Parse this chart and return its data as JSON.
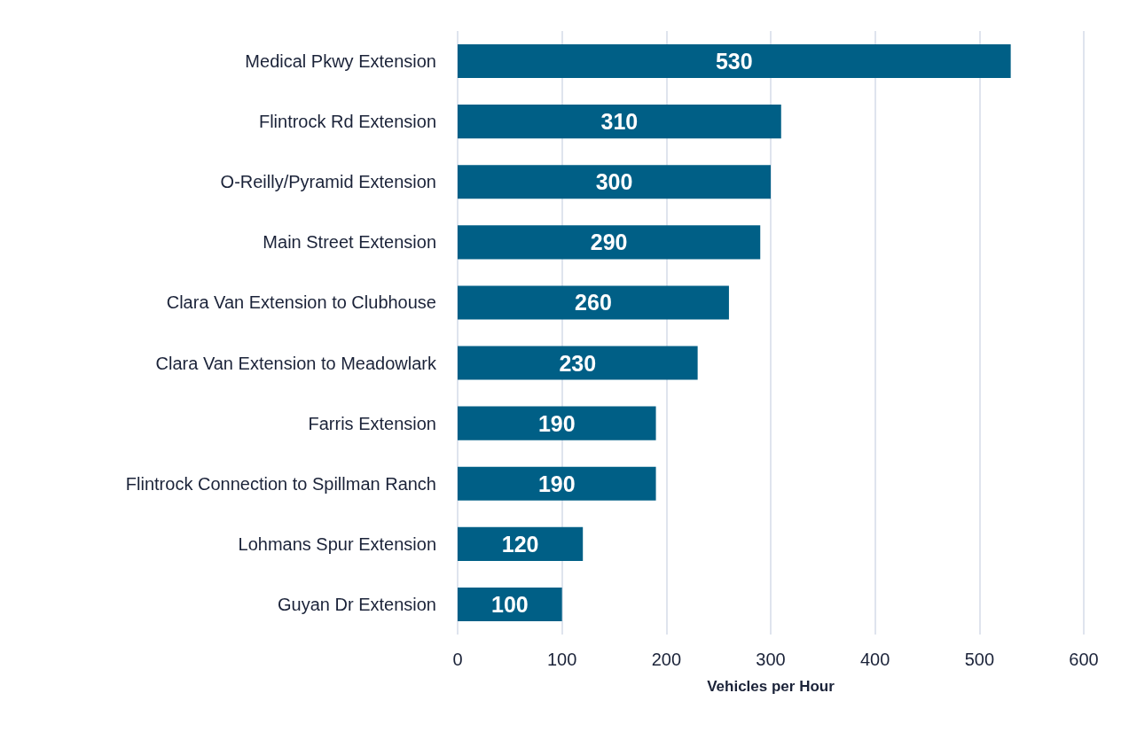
{
  "chart_data": {
    "type": "bar",
    "orientation": "horizontal",
    "xlabel": "Vehicles per Hour",
    "categories": [
      "Medical Pkwy Extension",
      "Flintrock Rd Extension",
      "O-Reilly/Pyramid Extension",
      "Main Street Extension",
      "Clara Van Extension to Clubhouse",
      "Clara Van Extension to Meadowlark",
      "Farris Extension",
      "Flintrock Connection to Spillman Ranch",
      "Lohmans Spur Extension",
      "Guyan Dr Extension"
    ],
    "values": [
      530,
      310,
      300,
      290,
      260,
      230,
      190,
      190,
      120,
      100
    ],
    "color": "#005f86",
    "xlim": [
      0,
      600
    ],
    "xticks": [
      0,
      100,
      200,
      300,
      400,
      500,
      600
    ],
    "grid": "x",
    "data_labels": true
  }
}
